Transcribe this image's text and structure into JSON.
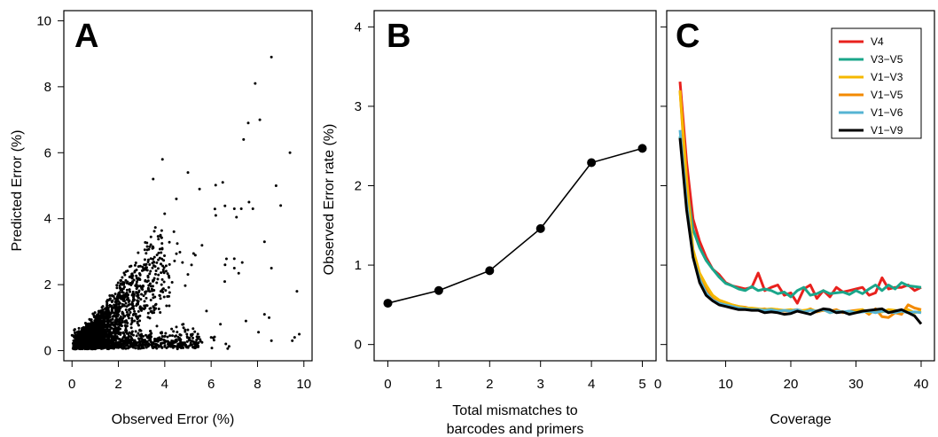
{
  "chart_data": [
    {
      "panel": "A",
      "type": "scatter",
      "xlabel": "Observed Error (%)",
      "ylabel": "Predicted Error (%)",
      "xlim": [
        0,
        10
      ],
      "ylim": [
        0,
        10
      ],
      "xticks": [
        0,
        2,
        4,
        6,
        8,
        10
      ],
      "yticks": [
        0,
        2,
        4,
        6,
        8,
        10
      ],
      "grid": false,
      "cluster": {
        "description_points": "dense point cloud near origin plus scattered outliers",
        "outliers": [
          [
            8.6,
            8.9
          ],
          [
            7.9,
            8.1
          ],
          [
            7.6,
            6.9
          ],
          [
            8.1,
            7.0
          ],
          [
            7.4,
            6.4
          ],
          [
            9.4,
            6.0
          ],
          [
            3.9,
            5.8
          ],
          [
            5.0,
            5.4
          ],
          [
            8.8,
            5.0
          ],
          [
            6.5,
            5.1
          ],
          [
            9.0,
            4.4
          ],
          [
            7.0,
            4.3
          ],
          [
            7.3,
            4.3
          ],
          [
            7.8,
            4.3
          ],
          [
            5.5,
            4.9
          ],
          [
            3.5,
            5.2
          ],
          [
            4.5,
            4.6
          ],
          [
            6.2,
            4.1
          ],
          [
            8.3,
            3.3
          ],
          [
            7.0,
            2.5
          ],
          [
            8.6,
            2.5
          ],
          [
            6.6,
            2.6
          ],
          [
            9.7,
            1.8
          ],
          [
            8.3,
            1.1
          ],
          [
            8.5,
            1.0
          ],
          [
            7.5,
            0.9
          ],
          [
            9.8,
            0.5
          ],
          [
            9.6,
            0.4
          ],
          [
            9.5,
            0.3
          ],
          [
            8.6,
            0.3
          ],
          [
            5.2,
            0.5
          ],
          [
            6.0,
            0.4
          ],
          [
            4.8,
            0.8
          ],
          [
            5.8,
            1.2
          ],
          [
            6.4,
            0.8
          ]
        ]
      }
    },
    {
      "panel": "B",
      "type": "line",
      "xlabel": "Total mismatches to barcodes and primers",
      "xlabel_lines": [
        "Total mismatches to",
        "barcodes and primers"
      ],
      "ylabel": "Observed Error rate (%)",
      "xlim": [
        0,
        5
      ],
      "ylim": [
        0,
        4
      ],
      "xticks": [
        0,
        1,
        2,
        3,
        4,
        5
      ],
      "yticks": [
        0,
        1,
        2,
        3,
        4
      ],
      "x": [
        0,
        1,
        2,
        3,
        4,
        5
      ],
      "y": [
        0.52,
        0.68,
        0.93,
        1.46,
        2.29,
        2.47
      ],
      "markers": true,
      "grid": false
    },
    {
      "panel": "C",
      "type": "line",
      "xlabel": "Coverage",
      "ylabel": "",
      "xlim": [
        3,
        40
      ],
      "ylim": [
        0,
        4
      ],
      "xticks": [
        0,
        10,
        20,
        30,
        40
      ],
      "yticks": [
        0,
        1,
        2,
        3,
        4
      ],
      "show_ytick_labels": false,
      "legend_position": "top-right",
      "grid": false,
      "x": [
        3,
        4,
        5,
        6,
        7,
        8,
        9,
        10,
        11,
        12,
        13,
        14,
        15,
        16,
        17,
        18,
        19,
        20,
        21,
        22,
        23,
        24,
        25,
        26,
        27,
        28,
        29,
        30,
        31,
        32,
        33,
        34,
        35,
        36,
        37,
        38,
        39,
        40
      ],
      "series": [
        {
          "name": "V4",
          "color": "#e8211d",
          "values": [
            3.31,
            2.3,
            1.58,
            1.3,
            1.1,
            0.95,
            0.88,
            0.78,
            0.74,
            0.72,
            0.7,
            0.72,
            0.9,
            0.68,
            0.72,
            0.75,
            0.62,
            0.65,
            0.52,
            0.7,
            0.75,
            0.58,
            0.68,
            0.6,
            0.72,
            0.66,
            0.68,
            0.7,
            0.72,
            0.62,
            0.65,
            0.84,
            0.7,
            0.72,
            0.72,
            0.75,
            0.68,
            0.72
          ]
        },
        {
          "name": "V3−V5",
          "color": "#1aa68a",
          "values": [
            2.62,
            2.0,
            1.45,
            1.22,
            1.06,
            0.95,
            0.85,
            0.77,
            0.74,
            0.7,
            0.68,
            0.73,
            0.68,
            0.7,
            0.68,
            0.64,
            0.66,
            0.6,
            0.68,
            0.72,
            0.62,
            0.64,
            0.68,
            0.64,
            0.65,
            0.66,
            0.63,
            0.68,
            0.64,
            0.7,
            0.75,
            0.68,
            0.75,
            0.7,
            0.78,
            0.74,
            0.73,
            0.72
          ]
        },
        {
          "name": "V1−V3",
          "color": "#f5b800",
          "values": [
            3.2,
            2.1,
            1.2,
            0.9,
            0.75,
            0.62,
            0.56,
            0.53,
            0.5,
            0.48,
            0.46,
            0.46,
            0.45,
            0.44,
            0.45,
            0.44,
            0.43,
            0.44,
            0.42,
            0.43,
            0.44,
            0.42,
            0.44,
            0.4,
            0.42,
            0.41,
            0.4,
            0.42,
            0.44,
            0.4,
            0.43,
            0.41,
            0.44,
            0.43,
            0.42,
            0.44,
            0.4,
            0.42
          ]
        },
        {
          "name": "V1−V5",
          "color": "#f38a00",
          "values": [
            3.2,
            2.0,
            1.15,
            0.85,
            0.7,
            0.6,
            0.55,
            0.52,
            0.5,
            0.48,
            0.47,
            0.45,
            0.44,
            0.45,
            0.43,
            0.44,
            0.42,
            0.43,
            0.44,
            0.42,
            0.45,
            0.41,
            0.43,
            0.42,
            0.44,
            0.4,
            0.42,
            0.43,
            0.44,
            0.38,
            0.45,
            0.35,
            0.34,
            0.4,
            0.38,
            0.5,
            0.46,
            0.44
          ]
        },
        {
          "name": "V1−V6",
          "color": "#56b4d3",
          "values": [
            2.7,
            1.8,
            1.1,
            0.82,
            0.65,
            0.56,
            0.52,
            0.5,
            0.48,
            0.46,
            0.45,
            0.44,
            0.44,
            0.43,
            0.44,
            0.42,
            0.43,
            0.42,
            0.44,
            0.41,
            0.43,
            0.42,
            0.44,
            0.4,
            0.42,
            0.41,
            0.42,
            0.4,
            0.41,
            0.42,
            0.4,
            0.42,
            0.41,
            0.4,
            0.42,
            0.4,
            0.41,
            0.4
          ]
        },
        {
          "name": "V1−V9",
          "color": "#000000",
          "values": [
            2.6,
            1.7,
            1.1,
            0.78,
            0.62,
            0.55,
            0.5,
            0.48,
            0.46,
            0.44,
            0.44,
            0.43,
            0.43,
            0.4,
            0.41,
            0.4,
            0.38,
            0.39,
            0.42,
            0.4,
            0.38,
            0.42,
            0.45,
            0.44,
            0.4,
            0.41,
            0.38,
            0.4,
            0.42,
            0.43,
            0.44,
            0.45,
            0.4,
            0.42,
            0.44,
            0.4,
            0.36,
            0.26
          ]
        }
      ]
    }
  ]
}
